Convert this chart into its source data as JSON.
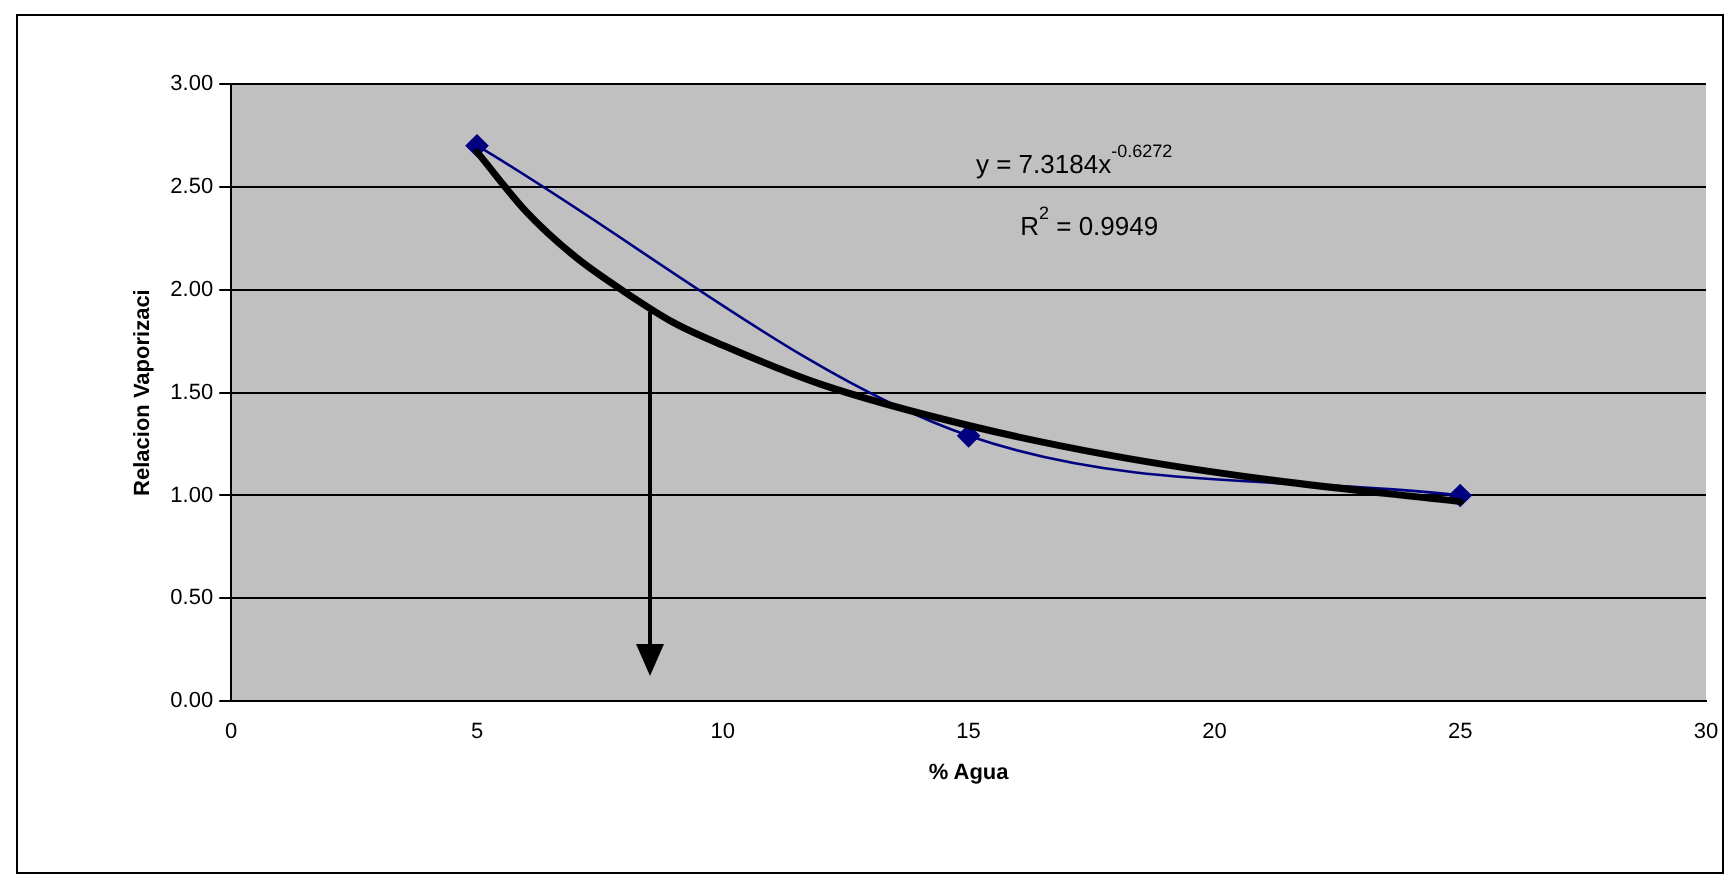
{
  "chart_data": {
    "type": "line",
    "xlabel": "% Agua",
    "ylabel": "Relacion Vaporizaci",
    "xlim": [
      0,
      30
    ],
    "xticks": [
      0,
      5,
      10,
      15,
      20,
      25,
      30
    ],
    "ylim": [
      0,
      3
    ],
    "yticks": [
      {
        "value": 0,
        "label": "0.00"
      },
      {
        "value": 0.5,
        "label": "0.50"
      },
      {
        "value": 1,
        "label": "1.00"
      },
      {
        "value": 1.5,
        "label": "1.50"
      },
      {
        "value": 2,
        "label": "2.00"
      },
      {
        "value": 2.5,
        "label": "2.50"
      },
      {
        "value": 3,
        "label": "3.00"
      }
    ],
    "grid": "y",
    "legend": false,
    "marker": "diamond",
    "series": [
      {
        "color": "#000080",
        "x": [
          5,
          15,
          25
        ],
        "values": [
          2.7,
          1.29,
          1.0
        ]
      },
      {
        "color": "#000000",
        "marker": "none",
        "x": [
          5,
          6,
          7,
          8,
          9,
          10,
          12,
          15,
          18,
          21,
          25
        ],
        "values": [
          2.67,
          2.38,
          2.16,
          1.99,
          1.84,
          1.73,
          1.54,
          1.34,
          1.19,
          1.08,
          0.97
        ]
      }
    ],
    "annotations": [
      "y = 7.3184x$^{-0.6272}$",
      "R$^{2}$ = 0.9949"
    ]
  }
}
